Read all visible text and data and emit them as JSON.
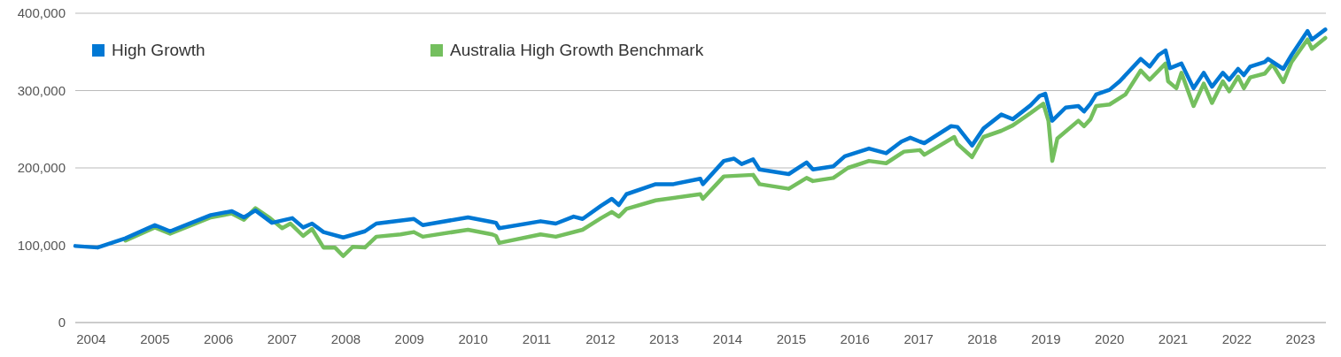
{
  "chart_data": {
    "type": "line",
    "xlim": [
      2003.75,
      2023.4
    ],
    "xticks": [
      2004,
      2005,
      2006,
      2007,
      2008,
      2009,
      2010,
      2011,
      2012,
      2013,
      2014,
      2015,
      2016,
      2017,
      2018,
      2019,
      2020,
      2021,
      2022,
      2023
    ],
    "ylim": [
      0,
      400000
    ],
    "yticks": [
      {
        "value": 0,
        "label": "0"
      },
      {
        "value": 100000,
        "label": "100,000"
      },
      {
        "value": 200000,
        "label": "200,000"
      },
      {
        "value": 300000,
        "label": "300,000"
      },
      {
        "value": 400000,
        "label": "400,000"
      }
    ],
    "grid": "y",
    "legend": "top left",
    "marker": "none",
    "line_style": "solid",
    "series": [
      {
        "name": "High Growth",
        "color": "#0078d4",
        "x": [
          2003.75,
          2004.1,
          2004.54,
          2005.0,
          2005.24,
          2005.88,
          2006.21,
          2006.4,
          2006.58,
          2006.84,
          2007.16,
          2007.33,
          2007.47,
          2007.65,
          2007.96,
          2008.3,
          2008.48,
          2009.07,
          2009.21,
          2009.92,
          2010.3,
          2010.36,
          2010.41,
          2011.06,
          2011.3,
          2011.58,
          2011.72,
          2012.01,
          2012.18,
          2012.29,
          2012.41,
          2012.87,
          2013.15,
          2013.57,
          2013.61,
          2013.94,
          2014.1,
          2014.22,
          2014.4,
          2014.5,
          2014.96,
          2015.24,
          2015.34,
          2015.66,
          2015.84,
          2016.22,
          2016.49,
          2016.73,
          2016.87,
          2017.02,
          2017.09,
          2017.51,
          2017.61,
          2017.84,
          2018.02,
          2018.3,
          2018.48,
          2018.76,
          2018.9,
          2018.99,
          2019.1,
          2019.31,
          2019.51,
          2019.6,
          2019.7,
          2019.79,
          2020.0,
          2020.16,
          2020.49,
          2020.63,
          2020.77,
          2020.88,
          2020.95,
          2021.13,
          2021.32,
          2021.48,
          2021.61,
          2021.78,
          2021.88,
          2022.02,
          2022.11,
          2022.21,
          2022.44,
          2022.49,
          2022.73,
          2022.86,
          2023.11,
          2023.18,
          2023.39
        ],
        "values": [
          99000,
          97000,
          109000,
          126000,
          118000,
          139000,
          144000,
          136000,
          145000,
          129000,
          135000,
          123000,
          128000,
          117000,
          110000,
          118000,
          128000,
          134000,
          126000,
          136000,
          130000,
          129000,
          122000,
          131000,
          128000,
          137000,
          134000,
          151000,
          160000,
          152000,
          166000,
          179000,
          179000,
          186000,
          179000,
          209000,
          212000,
          205000,
          211000,
          198000,
          192000,
          207000,
          198000,
          202000,
          215000,
          225000,
          219000,
          234000,
          239000,
          234000,
          232000,
          254000,
          253000,
          229000,
          251000,
          269000,
          263000,
          281000,
          293000,
          296000,
          261000,
          278000,
          280000,
          273000,
          283000,
          295000,
          301000,
          312000,
          341000,
          331000,
          346000,
          352000,
          329000,
          335000,
          303000,
          323000,
          305000,
          323000,
          314000,
          328000,
          320000,
          331000,
          337000,
          341000,
          328000,
          346000,
          377000,
          366000,
          379000
        ]
      },
      {
        "name": "Australia High Growth Benchmark",
        "color": "#74bf5e",
        "x": [
          2004.54,
          2005.0,
          2005.24,
          2005.88,
          2006.21,
          2006.4,
          2006.58,
          2006.81,
          2007.0,
          2007.13,
          2007.33,
          2007.47,
          2007.65,
          2007.83,
          2007.96,
          2008.11,
          2008.3,
          2008.48,
          2008.86,
          2009.07,
          2009.21,
          2009.92,
          2010.3,
          2010.36,
          2010.41,
          2011.06,
          2011.3,
          2011.72,
          2012.01,
          2012.18,
          2012.29,
          2012.41,
          2012.87,
          2013.57,
          2013.61,
          2013.94,
          2014.4,
          2014.5,
          2014.96,
          2015.24,
          2015.34,
          2015.66,
          2015.89,
          2016.22,
          2016.49,
          2016.77,
          2017.02,
          2017.09,
          2017.56,
          2017.61,
          2017.84,
          2018.02,
          2018.3,
          2018.48,
          2018.76,
          2018.96,
          2019.04,
          2019.1,
          2019.18,
          2019.51,
          2019.6,
          2019.7,
          2019.79,
          2020.0,
          2020.25,
          2020.49,
          2020.63,
          2020.88,
          2020.92,
          2021.05,
          2021.13,
          2021.32,
          2021.48,
          2021.61,
          2021.78,
          2021.88,
          2022.02,
          2022.11,
          2022.21,
          2022.44,
          2022.56,
          2022.73,
          2022.86,
          2023.11,
          2023.18,
          2023.39
        ],
        "values": [
          106000,
          123000,
          115000,
          136000,
          141000,
          133000,
          148000,
          135000,
          122000,
          128000,
          112000,
          121000,
          97000,
          97000,
          86000,
          98000,
          97000,
          111000,
          114000,
          117000,
          111000,
          120000,
          114000,
          112000,
          103000,
          114000,
          111000,
          120000,
          135000,
          143000,
          137000,
          147000,
          158000,
          166000,
          160000,
          189000,
          191000,
          179000,
          173000,
          187000,
          183000,
          187000,
          200000,
          209000,
          206000,
          221000,
          223000,
          217000,
          240000,
          231000,
          214000,
          240000,
          248000,
          255000,
          271000,
          283000,
          261000,
          209000,
          238000,
          261000,
          254000,
          263000,
          280000,
          282000,
          295000,
          326000,
          314000,
          335000,
          312000,
          303000,
          323000,
          280000,
          309000,
          284000,
          312000,
          299000,
          318000,
          303000,
          317000,
          322000,
          334000,
          311000,
          337000,
          366000,
          354000,
          368000
        ]
      }
    ]
  }
}
